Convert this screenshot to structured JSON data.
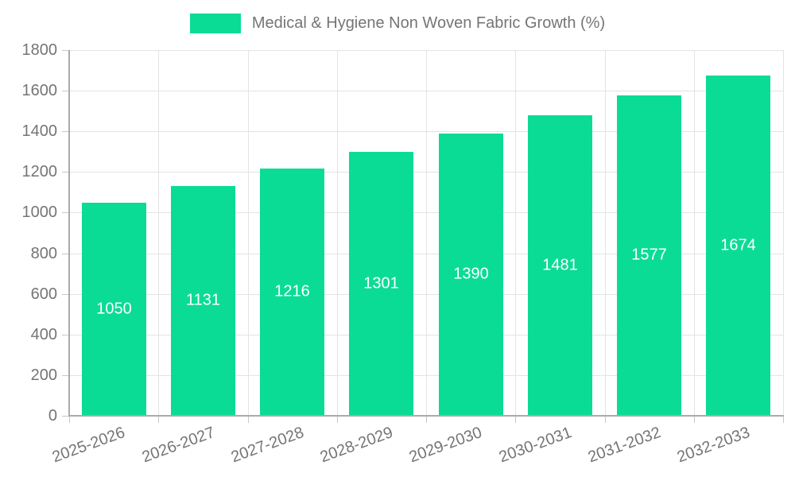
{
  "legend": {
    "label": "Medical & Hygiene Non Woven Fabric Growth (%)"
  },
  "chart_data": {
    "type": "bar",
    "title": "",
    "xlabel": "",
    "ylabel": "",
    "categories": [
      "2025-2026",
      "2026-2027",
      "2027-2028",
      "2028-2029",
      "2029-2030",
      "2030-2031",
      "2031-2032",
      "2032-2033"
    ],
    "series": [
      {
        "name": "Medical & Hygiene Non Woven Fabric Growth (%)",
        "values": [
          1050,
          1131,
          1216,
          1301,
          1390,
          1481,
          1577,
          1674
        ]
      }
    ],
    "value_labels": [
      "1050",
      "1131",
      "1216",
      "1301",
      "1390",
      "1481",
      "1577",
      "1674"
    ],
    "ylim": [
      0,
      1800
    ],
    "yticks": [
      0,
      200,
      400,
      600,
      800,
      1000,
      1200,
      1400,
      1600,
      1800
    ],
    "grid": true,
    "legend_position": "top-center",
    "x_tick_rotation_deg": -20,
    "colors": {
      "bar": "#0bdc95",
      "value_label": "#ffffff",
      "axis_text": "#757575",
      "grid_line": "#e3e3e3",
      "axis_line": "#aaaaaa",
      "tick": "#c7c7c7",
      "background": "#ffffff"
    }
  }
}
